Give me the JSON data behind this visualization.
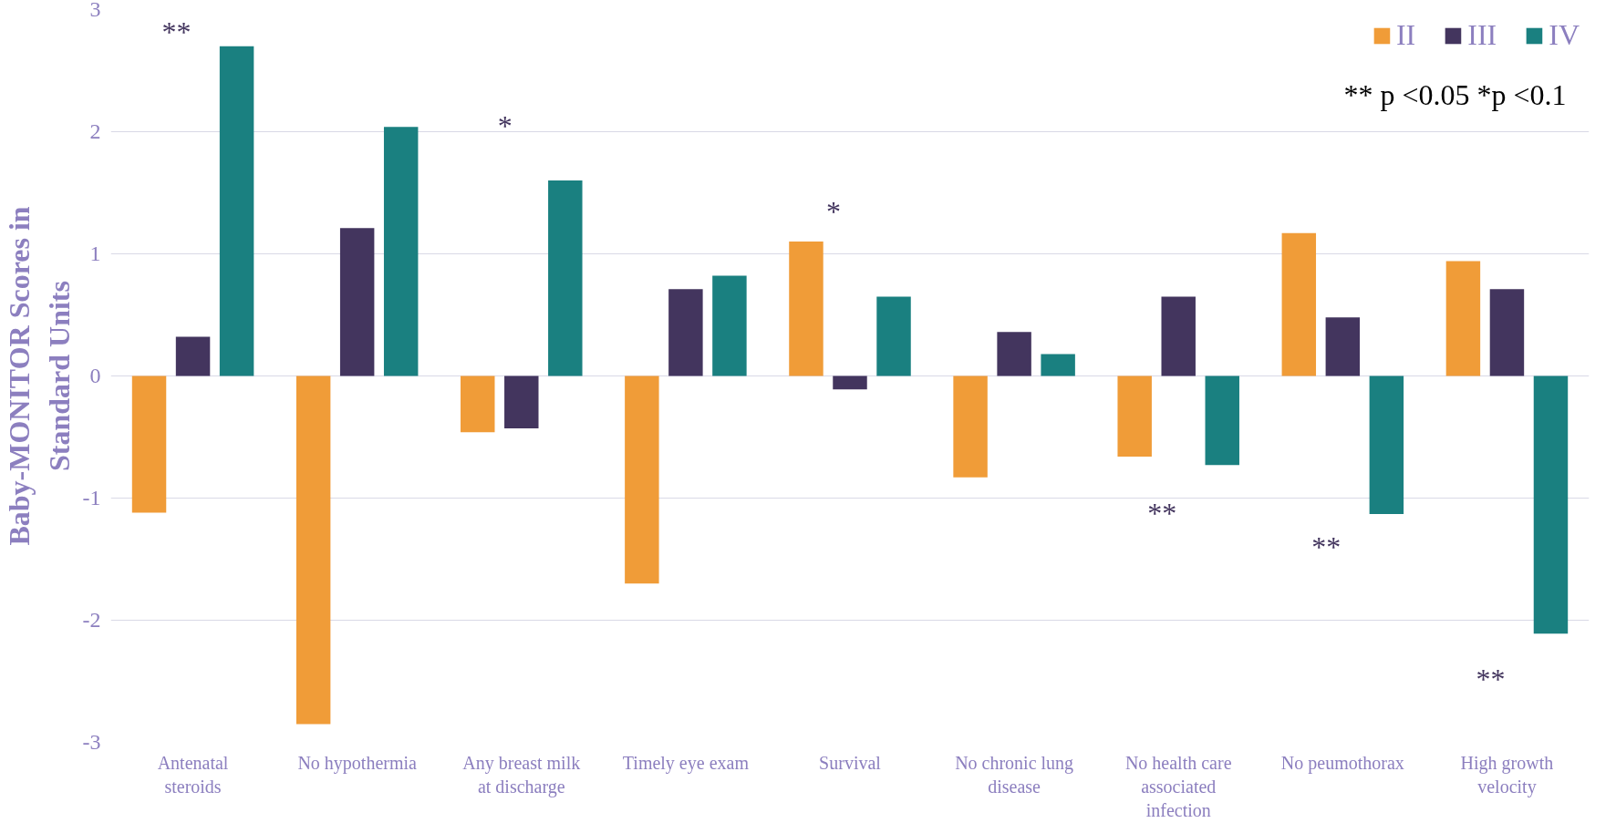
{
  "chart_data": {
    "type": "bar",
    "ylabel": "Baby-MONITOR Scores in Standard Units",
    "categories": [
      "Antenatal steroids",
      "No hypothermia",
      "Any breast milk at discharge",
      "Timely eye exam",
      "Survival",
      "No chronic lung disease",
      "No health care associated infection",
      "No peumothorax",
      "High growth velocity"
    ],
    "series": [
      {
        "name": "II",
        "color": "#f09c38",
        "values": [
          -1.12,
          -2.85,
          -0.46,
          -1.7,
          1.1,
          -0.83,
          -0.66,
          1.17,
          0.94
        ]
      },
      {
        "name": "III",
        "color": "#43355e",
        "values": [
          0.32,
          1.21,
          -0.43,
          0.71,
          -0.11,
          0.36,
          0.65,
          0.48,
          0.71
        ]
      },
      {
        "name": "IV",
        "color": "#1a8080",
        "values": [
          2.7,
          2.04,
          1.6,
          0.82,
          0.65,
          0.18,
          -0.73,
          -1.13,
          -2.11
        ]
      }
    ],
    "ylim": [
      -3,
      3
    ],
    "yticks": [
      -3,
      -2,
      -1,
      0,
      1,
      2,
      3
    ],
    "grid": "y",
    "legend": "top right",
    "annotations": [
      "**",
      "*",
      "*",
      "**",
      "**",
      "**",
      "** p <0.05   *p <0.1"
    ]
  }
}
